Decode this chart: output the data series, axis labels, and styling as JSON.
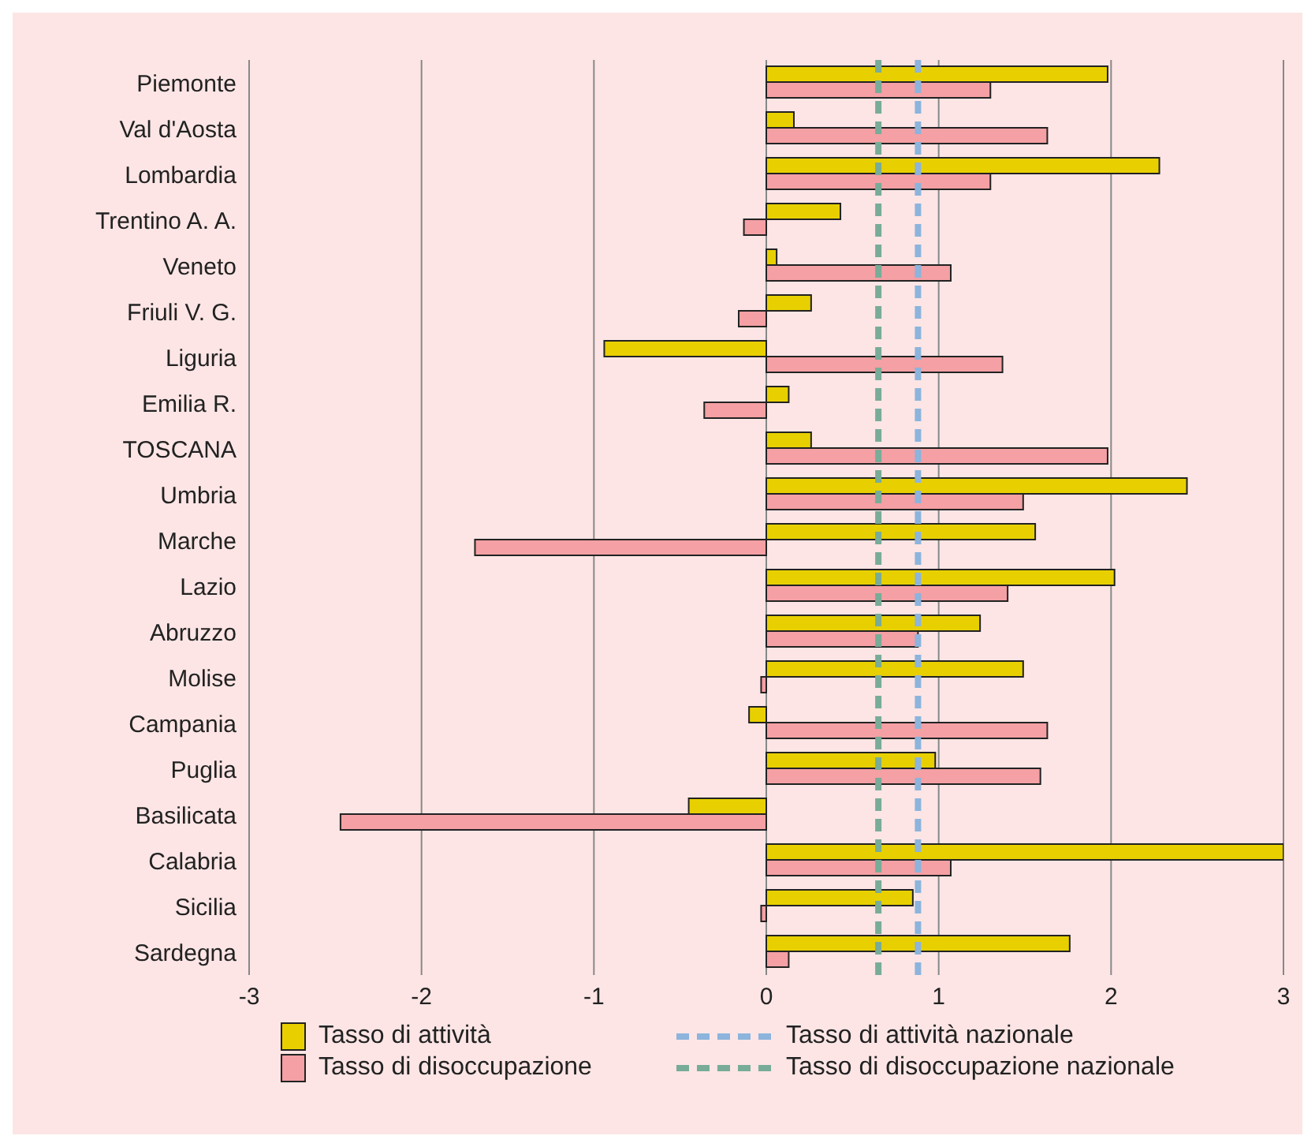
{
  "chart_data": {
    "type": "bar",
    "orientation": "horizontal",
    "categories": [
      "Piemonte",
      "Val d'Aosta",
      "Lombardia",
      "Trentino A. A.",
      "Veneto",
      "Friuli V. G.",
      "Liguria",
      "Emilia R.",
      "TOSCANA",
      "Umbria",
      "Marche",
      "Lazio",
      "Abruzzo",
      "Molise",
      "Campania",
      "Puglia",
      "Basilicata",
      "Calabria",
      "Sicilia",
      "Sardegna"
    ],
    "series": [
      {
        "name": "Tasso di attività",
        "color": "#e8d000",
        "values": [
          1.98,
          0.16,
          2.28,
          0.43,
          0.06,
          0.26,
          -0.94,
          0.13,
          0.26,
          2.44,
          1.56,
          2.02,
          1.24,
          1.49,
          -0.1,
          0.98,
          -0.45,
          3.0,
          0.85,
          1.76
        ]
      },
      {
        "name": "Tasso di disoccupazione",
        "color": "#f4a0a4",
        "values": [
          1.3,
          1.63,
          1.3,
          -0.13,
          1.07,
          -0.16,
          1.37,
          -0.36,
          1.98,
          1.49,
          -1.69,
          1.4,
          0.88,
          -0.03,
          1.63,
          1.59,
          -2.47,
          1.07,
          -0.03,
          0.13
        ]
      }
    ],
    "ref_lines": [
      {
        "axis": "x",
        "value": 0.88,
        "label": "Tasso di attività nazionale",
        "color": "#8cb4dc",
        "line_style": "dashed"
      },
      {
        "axis": "x",
        "value": 0.65,
        "label": "Tasso di disoccupazione nazionale",
        "color": "#78ac98",
        "line_style": "dashed"
      }
    ],
    "xlim": [
      -3,
      3
    ],
    "xticks": [
      -3,
      -2,
      -1,
      0,
      1,
      2,
      3
    ],
    "grid": "x",
    "legend": "bottom"
  }
}
